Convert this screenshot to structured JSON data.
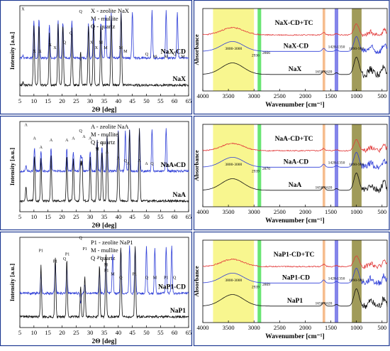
{
  "colors": {
    "frame": "#1f3a93",
    "black_trace": "#111111",
    "blue_trace": "#2f3fd8",
    "red_trace": "#e23b3b",
    "band_yellow": "#f6f36a",
    "band_green": "#4fe05a",
    "band_orange": "#f5b27a",
    "band_blue": "#6e70e6",
    "band_olive": "#8f8a3c"
  },
  "chart_data": [
    {
      "type": "line",
      "panel": "xrd-nax",
      "xlabel": "2Θ [deg]",
      "ylabel": "Intensity [a.u.]",
      "xlim": [
        5,
        65
      ],
      "xticks": [
        "5",
        "10",
        "15",
        "20",
        "25",
        "30",
        "35",
        "40",
        "45",
        "50",
        "55",
        "60",
        "65"
      ],
      "legend": [
        "X - zeolite NaX",
        "M - mullite",
        "Q - quartz"
      ],
      "series": [
        {
          "name": "NaX-CD",
          "color": "blue",
          "level": 0.58,
          "peaks": [
            [
              6.1,
              0.55
            ],
            [
              10,
              0.16
            ],
            [
              11.8,
              0.15
            ],
            [
              15.5,
              0.2
            ],
            [
              18.6,
              0.17
            ],
            [
              20.3,
              0.18
            ],
            [
              23.5,
              0.17
            ],
            [
              26.6,
              0.6
            ],
            [
              29.4,
              0.2
            ],
            [
              31.2,
              0.14
            ],
            [
              33.8,
              0.18
            ],
            [
              35.5,
              0.1
            ],
            [
              37.5,
              0.08
            ],
            [
              41,
              0.08
            ],
            [
              45,
              0.06
            ],
            [
              52,
              0.06
            ],
            [
              57,
              0.06
            ],
            [
              61,
              0.07
            ]
          ]
        },
        {
          "name": "NaX",
          "color": "black",
          "level": 0.88,
          "peaks": [
            [
              6.1,
              0.85
            ],
            [
              10,
              0.22
            ],
            [
              11.8,
              0.2
            ],
            [
              15.5,
              0.3
            ],
            [
              18.6,
              0.2
            ],
            [
              20.3,
              0.2
            ],
            [
              23.5,
              0.25
            ],
            [
              26.6,
              0.5
            ],
            [
              29.4,
              0.22
            ],
            [
              31.2,
              0.18
            ],
            [
              33.8,
              0.2
            ],
            [
              37.5,
              0.1
            ],
            [
              41,
              0.08
            ]
          ]
        }
      ],
      "peak_labels": [
        {
          "t": "X",
          "x": 6.1,
          "y": 0.05
        },
        {
          "t": "X",
          "x": 10.2,
          "y": 0.52
        },
        {
          "t": "X",
          "x": 12.2,
          "y": 0.52
        },
        {
          "t": "X",
          "x": 15.8,
          "y": 0.45
        },
        {
          "t": "X",
          "x": 17.5,
          "y": 0.48
        },
        {
          "t": "Q",
          "x": 20.9,
          "y": 0.42
        },
        {
          "t": "Q",
          "x": 23.2,
          "y": 0.32
        },
        {
          "t": "Q",
          "x": 26.6,
          "y": 0.08
        },
        {
          "t": "X",
          "x": 30.5,
          "y": 0.42
        },
        {
          "t": "X",
          "x": 32.2,
          "y": 0.48
        },
        {
          "t": "M",
          "x": 33.8,
          "y": 0.42
        },
        {
          "t": "M",
          "x": 35.5,
          "y": 0.48
        },
        {
          "t": "M",
          "x": 40.9,
          "y": 0.48
        },
        {
          "t": "M",
          "x": 42.5,
          "y": 0.52
        },
        {
          "t": "Q",
          "x": 50.1,
          "y": 0.55
        },
        {
          "t": "M",
          "x": 53,
          "y": 0.58
        },
        {
          "t": "M",
          "x": 57,
          "y": 0.58
        },
        {
          "t": "Q",
          "x": 60,
          "y": 0.55
        },
        {
          "t": "M",
          "x": 63,
          "y": 0.58
        }
      ]
    },
    {
      "type": "line",
      "panel": "ftir-nax",
      "xlabel": "Wavenumber [cm⁻¹]",
      "ylabel": "Absorbance",
      "xlim": [
        4000,
        400
      ],
      "xticks": [
        "4000",
        "3500",
        "3000",
        "2500",
        "2000",
        "1500",
        "1000",
        "500"
      ],
      "bands": [
        {
          "from": 3800,
          "to": 3000,
          "color": "yellow",
          "label": "3800-3000"
        },
        {
          "from": 2930,
          "to": 2860,
          "color": "green",
          "label": "2936",
          "label2": "2866"
        },
        {
          "from": 1660,
          "to": 1610,
          "color": "orange",
          "label": "1650-1620"
        },
        {
          "from": 1425,
          "to": 1355,
          "color": "blue",
          "label": "1420-1350"
        },
        {
          "from": 1090,
          "to": 900,
          "color": "olive",
          "label": "1090-900"
        }
      ],
      "series": [
        {
          "name": "NaX-CD+TC",
          "color": "red"
        },
        {
          "name": "NaX-CD",
          "color": "blue"
        },
        {
          "name": "NaX",
          "color": "black"
        }
      ]
    },
    {
      "type": "line",
      "panel": "xrd-naa",
      "xlabel": "2Θ [deg]",
      "ylabel": "Intensity [a.u.]",
      "xlim": [
        5,
        65
      ],
      "xticks": [
        "5",
        "10",
        "15",
        "20",
        "25",
        "30",
        "35",
        "40",
        "45",
        "50",
        "55",
        "60",
        "65"
      ],
      "legend": [
        "A - zeolite NaA",
        "M - mullite",
        "Q - quartz"
      ],
      "series": [
        {
          "name": "NaA-CD",
          "color": "blue",
          "level": 0.55,
          "peaks": [
            [
              7.2,
              0.48
            ],
            [
              10.2,
              0.3
            ],
            [
              12.5,
              0.32
            ],
            [
              16.1,
              0.3
            ],
            [
              21.7,
              0.3
            ],
            [
              24,
              0.33
            ],
            [
              26.6,
              0.38
            ],
            [
              27.1,
              0.4
            ],
            [
              30,
              0.33
            ],
            [
              32.5,
              0.2
            ],
            [
              34.2,
              0.28
            ],
            [
              36,
              0.15
            ],
            [
              40,
              0.1
            ],
            [
              42.5,
              0.1
            ],
            [
              44,
              0.08
            ],
            [
              47.5,
              0.08
            ],
            [
              52,
              0.08
            ],
            [
              57,
              0.08
            ]
          ]
        },
        {
          "name": "NaA",
          "color": "black",
          "level": 0.88,
          "peaks": [
            [
              7.2,
              0.72
            ],
            [
              10.2,
              0.38
            ],
            [
              12.5,
              0.4
            ],
            [
              16.1,
              0.38
            ],
            [
              21.7,
              0.38
            ],
            [
              24,
              0.4
            ],
            [
              26.6,
              0.45
            ],
            [
              27.1,
              0.45
            ],
            [
              30,
              0.4
            ],
            [
              32.5,
              0.2
            ],
            [
              34.2,
              0.32
            ],
            [
              36,
              0.15
            ],
            [
              40,
              0.1
            ],
            [
              44,
              0.1
            ],
            [
              47.5,
              0.08
            ]
          ]
        }
      ],
      "peak_labels": [
        {
          "t": "A",
          "x": 7.2,
          "y": 0.05
        },
        {
          "t": "A",
          "x": 10.2,
          "y": 0.2
        },
        {
          "t": "A",
          "x": 12.5,
          "y": 0.3
        },
        {
          "t": "A",
          "x": 16.1,
          "y": 0.22
        },
        {
          "t": "A",
          "x": 21.7,
          "y": 0.22
        },
        {
          "t": "A",
          "x": 24,
          "y": 0.2
        },
        {
          "t": "Q",
          "x": 26.6,
          "y": 0.12
        },
        {
          "t": "A",
          "x": 27.8,
          "y": 0.18
        },
        {
          "t": "A",
          "x": 30,
          "y": 0.2
        },
        {
          "t": "A",
          "x": 34.2,
          "y": 0.25
        },
        {
          "t": "M",
          "x": 32.5,
          "y": 0.32
        },
        {
          "t": "A",
          "x": 36,
          "y": 0.35
        },
        {
          "t": "A",
          "x": 40,
          "y": 0.42
        },
        {
          "t": "Q",
          "x": 42.5,
          "y": 0.45
        },
        {
          "t": "A",
          "x": 43.5,
          "y": 0.48
        },
        {
          "t": "A",
          "x": 47.5,
          "y": 0.45
        },
        {
          "t": "A",
          "x": 50,
          "y": 0.48
        },
        {
          "t": "Q",
          "x": 52,
          "y": 0.48
        },
        {
          "t": "A",
          "x": 57,
          "y": 0.48
        },
        {
          "t": "M",
          "x": 60.5,
          "y": 0.5
        }
      ]
    },
    {
      "type": "line",
      "panel": "ftir-naa",
      "xlabel": "Wavenumber [cm⁻¹]",
      "ylabel": "Absorbance",
      "xlim": [
        4000,
        400
      ],
      "xticks": [
        "4000",
        "3500",
        "3000",
        "2500",
        "2000",
        "1500",
        "1000",
        "500"
      ],
      "bands": [
        {
          "from": 3800,
          "to": 3000,
          "color": "yellow",
          "label": "3800-3000"
        },
        {
          "from": 2930,
          "to": 2860,
          "color": "green",
          "label": "2939",
          "label2": "2870"
        },
        {
          "from": 1660,
          "to": 1610,
          "color": "orange",
          "label": "1650-1620"
        },
        {
          "from": 1425,
          "to": 1355,
          "color": "blue",
          "label": "1420-1350"
        },
        {
          "from": 1090,
          "to": 900,
          "color": "olive",
          "label": "1090-900"
        }
      ],
      "series": [
        {
          "name": "NaA-CD+TC",
          "color": "red"
        },
        {
          "name": "NaA-CD",
          "color": "blue"
        },
        {
          "name": "NaA",
          "color": "black"
        }
      ]
    },
    {
      "type": "line",
      "panel": "xrd-nap1",
      "xlabel": "2Θ [deg]",
      "ylabel": "Intensity [a.u.]",
      "xlim": [
        5,
        65
      ],
      "xticks": [
        "5",
        "10",
        "15",
        "20",
        "25",
        "30",
        "35",
        "40",
        "45",
        "50",
        "55",
        "60",
        "65"
      ],
      "legend": [
        "P1 - zeolite NaP1",
        "M - mullite",
        "Q - quartz"
      ],
      "series": [
        {
          "name": "NaP1-CD",
          "color": "blue",
          "level": 0.62,
          "peaks": [
            [
              12.5,
              0.4
            ],
            [
              17.6,
              0.28
            ],
            [
              21.7,
              0.32
            ],
            [
              26.6,
              0.72
            ],
            [
              28.1,
              0.52
            ],
            [
              33.3,
              0.38
            ],
            [
              35.6,
              0.25
            ],
            [
              38,
              0.18
            ],
            [
              40.9,
              0.12
            ],
            [
              44,
              0.1
            ],
            [
              46,
              0.12
            ],
            [
              50,
              0.1
            ],
            [
              53,
              0.12
            ],
            [
              57,
              0.1
            ],
            [
              59,
              0.1
            ]
          ]
        },
        {
          "name": "NaP1",
          "color": "black",
          "level": 0.88,
          "peaks": [
            [
              12.5,
              0.3
            ],
            [
              17.6,
              0.22
            ],
            [
              21.7,
              0.25
            ],
            [
              26.6,
              0.55
            ],
            [
              28.1,
              0.42
            ],
            [
              33.3,
              0.3
            ],
            [
              35.6,
              0.18
            ],
            [
              40.9,
              0.1
            ],
            [
              46,
              0.1
            ]
          ]
        }
      ],
      "peak_labels": [
        {
          "t": "P1",
          "x": 12.5,
          "y": 0.16
        },
        {
          "t": "P1",
          "x": 17.6,
          "y": 0.28
        },
        {
          "t": "Q",
          "x": 20.9,
          "y": 0.25
        },
        {
          "t": "P1",
          "x": 21.9,
          "y": 0.2
        },
        {
          "t": "Q",
          "x": 26.6,
          "y": 0.02
        },
        {
          "t": "P1",
          "x": 28.1,
          "y": 0.14
        },
        {
          "t": "P1",
          "x": 33.3,
          "y": 0.24
        },
        {
          "t": "M",
          "x": 35.6,
          "y": 0.32
        },
        {
          "t": "P1",
          "x": 35.8,
          "y": 0.38
        },
        {
          "t": "M",
          "x": 38,
          "y": 0.42
        },
        {
          "t": "Q",
          "x": 40.9,
          "y": 0.46
        },
        {
          "t": "P1",
          "x": 45.8,
          "y": 0.42
        },
        {
          "t": "Q",
          "x": 50.1,
          "y": 0.46
        },
        {
          "t": "M",
          "x": 53,
          "y": 0.46
        },
        {
          "t": "P1",
          "x": 57,
          "y": 0.46
        },
        {
          "t": "Q",
          "x": 60,
          "y": 0.46
        }
      ]
    },
    {
      "type": "line",
      "panel": "ftir-nap1",
      "xlabel": "Wavenumber [cm⁻¹]",
      "ylabel": "Absorbance",
      "xlim": [
        4000,
        400
      ],
      "xticks": [
        "4000",
        "3500",
        "3000",
        "2500",
        "2000",
        "1500",
        "1000",
        "500"
      ],
      "bands": [
        {
          "from": 3800,
          "to": 3000,
          "color": "yellow",
          "label": "3800-3000"
        },
        {
          "from": 2930,
          "to": 2860,
          "color": "green",
          "label": "2939",
          "label2": "2869"
        },
        {
          "from": 1660,
          "to": 1610,
          "color": "orange",
          "label": "1650-1620"
        },
        {
          "from": 1425,
          "to": 1355,
          "color": "blue",
          "label": "1420-1350"
        },
        {
          "from": 1090,
          "to": 900,
          "color": "olive",
          "label": "1090-900"
        }
      ],
      "series": [
        {
          "name": "NaP1-CD+TC",
          "color": "red"
        },
        {
          "name": "NaP1-CD",
          "color": "blue"
        },
        {
          "name": "NaP1",
          "color": "black"
        }
      ]
    }
  ]
}
